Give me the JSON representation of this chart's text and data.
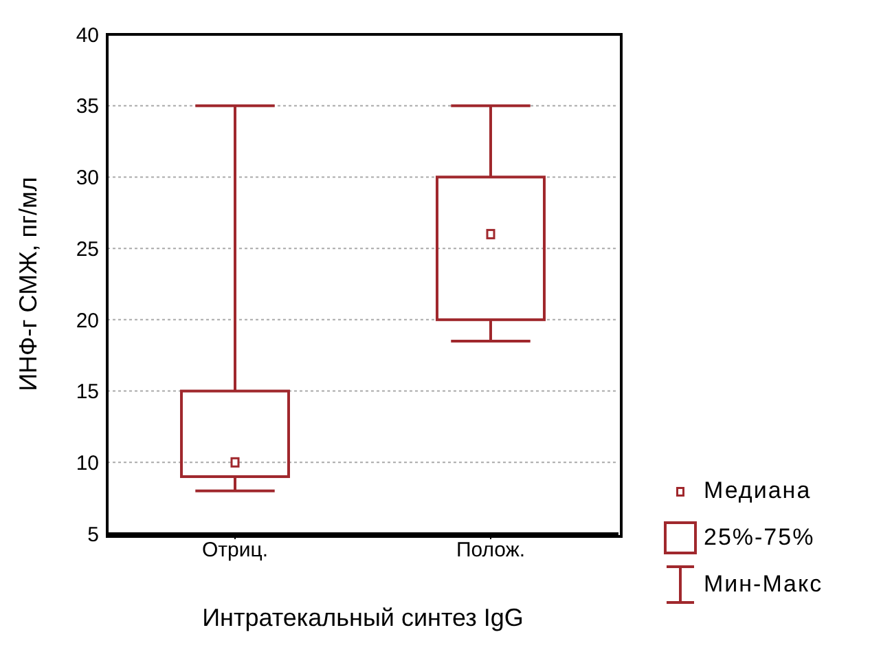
{
  "chart_data": {
    "type": "box",
    "xlabel": "Интратекальный синтез IgG",
    "ylabel": "ИНФ-г СМЖ, пг/мл",
    "categories": [
      "Отриц.",
      "Полож."
    ],
    "series": [
      {
        "color": "#a0282d",
        "boxes": [
          {
            "low": 8,
            "q1": 9,
            "median": 10,
            "q3": 15,
            "high": 35
          },
          {
            "low": 18.5,
            "q1": 20,
            "median": 26,
            "q3": 30,
            "high": 35
          }
        ]
      }
    ],
    "ylim": [
      5,
      40
    ],
    "yticks": [
      5,
      10,
      15,
      20,
      25,
      30,
      35,
      40
    ],
    "grid": "y",
    "annotations": [
      "Медиана",
      "25%-75%",
      "Мин-Макс"
    ]
  }
}
